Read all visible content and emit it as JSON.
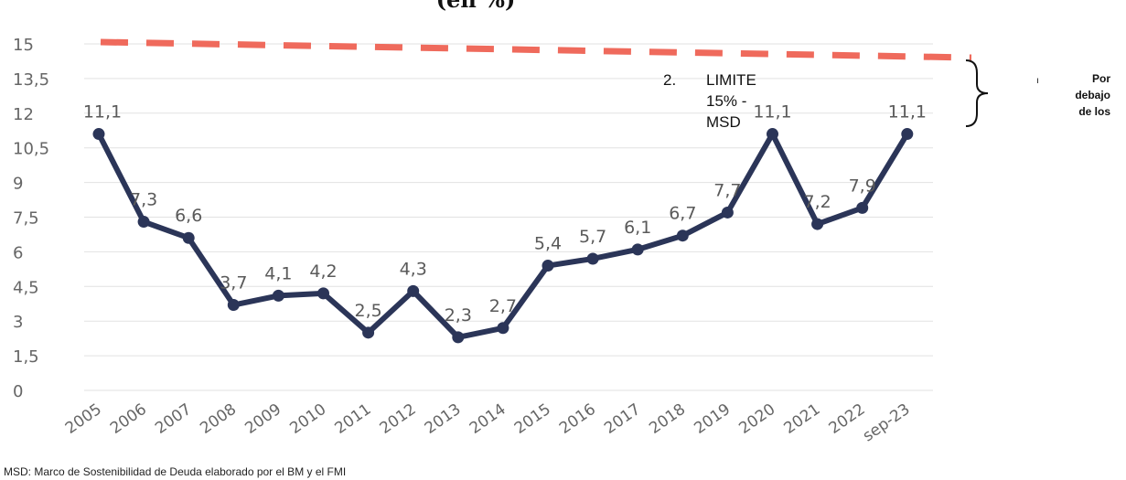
{
  "chart_data": {
    "type": "line",
    "title": "(en %)",
    "xlabel": "",
    "ylabel": "",
    "ylim": [
      0,
      15
    ],
    "yticks": [
      "0",
      "1,5",
      "3",
      "4,5",
      "6",
      "7,5",
      "9",
      "10,5",
      "12",
      "13,5",
      "15"
    ],
    "grid": true,
    "categories": [
      "2005",
      "2006",
      "2007",
      "2008",
      "2009",
      "2010",
      "2011",
      "2012",
      "2013",
      "2014",
      "2015",
      "2016",
      "2017",
      "2018",
      "2019",
      "2020",
      "2021",
      "2022",
      "sep-23"
    ],
    "series": [
      {
        "values": [
          11.1,
          7.3,
          6.6,
          3.7,
          4.1,
          4.2,
          2.5,
          4.3,
          2.3,
          2.7,
          5.4,
          5.7,
          6.1,
          6.7,
          7.7,
          11.1,
          7.2,
          7.9,
          11.1
        ],
        "labels": [
          "11,1",
          "7,3",
          "6,6",
          "3,7",
          "4,1",
          "4,2",
          "2,5",
          "4,3",
          "2,3",
          "2,7",
          "5,4",
          "5,7",
          "6,1",
          "6,7",
          "7,7",
          "11,1",
          "7,2",
          "7,9",
          "11,1"
        ],
        "color": "#2b3558"
      }
    ],
    "limit_line": {
      "value": 15,
      "color": "#ef6a5c"
    },
    "annotation": {
      "number": "2.",
      "lines": [
        "LIMITE",
        "15% -",
        "MSD"
      ]
    },
    "side_note": {
      "bullet": "ı",
      "lines": [
        "Por",
        "debajo",
        "de los"
      ]
    },
    "footnote": "MSD: Marco de Sostenibilidad de Deuda elaborado por el BM y el FMI"
  }
}
